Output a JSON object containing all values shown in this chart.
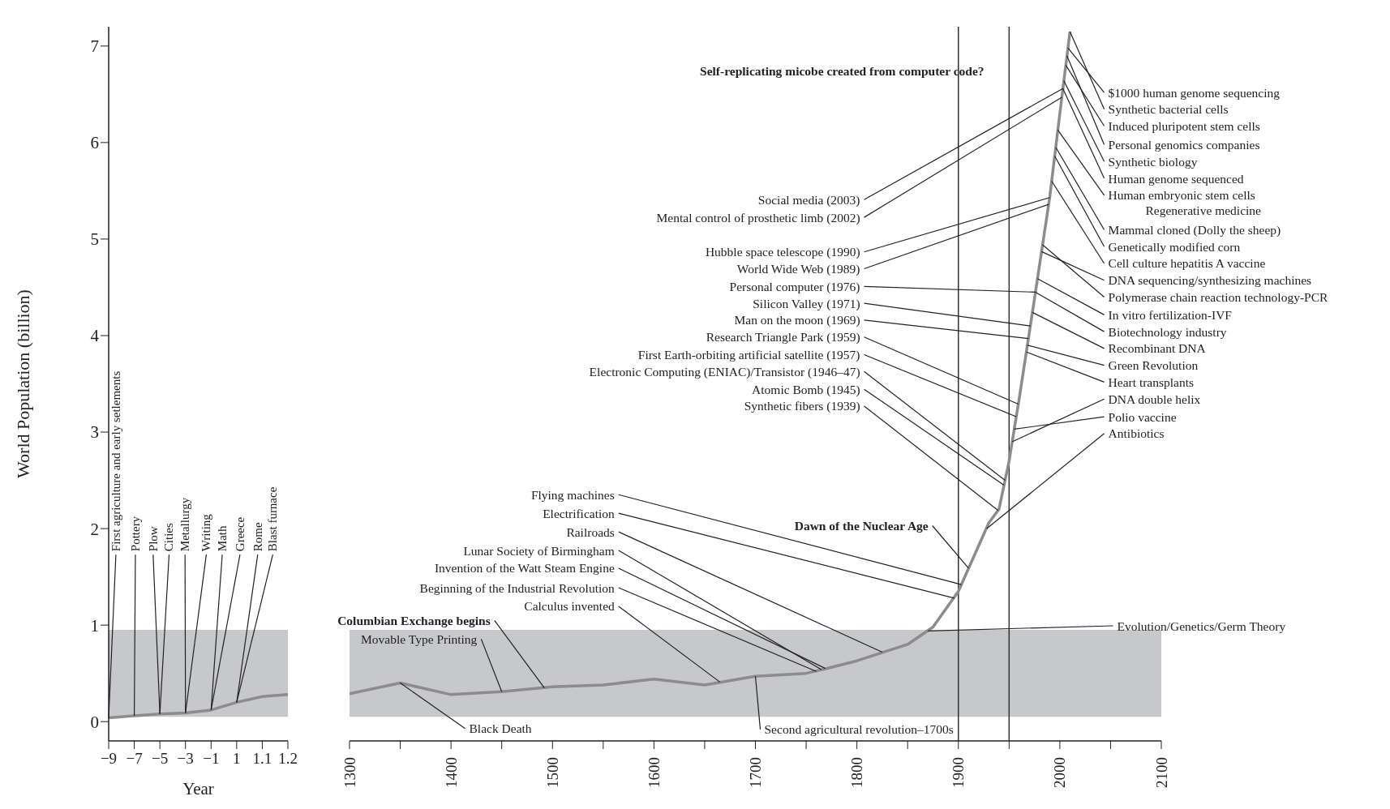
{
  "chart_data": [
    {
      "type": "line",
      "xlabel": "Year",
      "ylabel": "World Population (billion)",
      "categories": [
        "−9",
        "−7",
        "−5",
        "−3",
        "−1",
        "1",
        "1.1",
        "1.2"
      ],
      "series": [
        {
          "color": "#8c8c8c",
          "values": [
            0.04,
            0.06,
            0.08,
            0.09,
            0.12,
            0.2,
            0.26,
            0.28
          ]
        }
      ],
      "ylim": [
        -0.2,
        7.2
      ],
      "yticks": [
        0,
        1,
        2,
        3,
        4,
        5,
        6,
        7
      ],
      "grid": false,
      "legend": false,
      "marker": "none",
      "bands": [
        {
          "axis": "y",
          "from": 0.05,
          "to": 0.95,
          "color": "#c7c8cc"
        }
      ],
      "annotations": [
        {
          "text": "First agriculture and early setlements",
          "x": "−9",
          "y": 0.04
        },
        {
          "text": "Pottery",
          "x": "−7",
          "y": 0.06
        },
        {
          "text": "Plow",
          "x": "−5",
          "y": 0.08
        },
        {
          "text": "Cities",
          "x": "−5",
          "y": 0.08
        },
        {
          "text": "Metallurgy",
          "x": "−3",
          "y": 0.09
        },
        {
          "text": "Writing",
          "x": "−3",
          "y": 0.09
        },
        {
          "text": "Math",
          "x": "−1",
          "y": 0.12
        },
        {
          "text": "Greece",
          "x": "−1",
          "y": 0.12
        },
        {
          "text": "Rome",
          "x": "1",
          "y": 0.2
        },
        {
          "text": "Blast furnace",
          "x": "1",
          "y": 0.2
        }
      ]
    },
    {
      "type": "line",
      "x": [
        1300,
        1350,
        1400,
        1450,
        1500,
        1550,
        1600,
        1650,
        1700,
        1750,
        1770,
        1800,
        1850,
        1875,
        1900,
        1930,
        1940,
        1950,
        1960,
        1975,
        1990,
        2000,
        2010
      ],
      "series": [
        {
          "color": "#8c8c8c",
          "values": [
            0.29,
            0.4,
            0.28,
            0.31,
            0.36,
            0.38,
            0.44,
            0.38,
            0.47,
            0.5,
            0.55,
            0.63,
            0.8,
            0.98,
            1.35,
            2.06,
            2.2,
            2.7,
            3.35,
            4.38,
            5.43,
            6.3,
            7.15
          ]
        }
      ],
      "xlim": [
        1300,
        2100
      ],
      "xticks": [
        1300,
        {
          "value": 1350,
          "label": null
        },
        1400,
        {
          "value": 1450,
          "label": null
        },
        1500,
        {
          "value": 1550,
          "label": null
        },
        1600,
        {
          "value": 1650,
          "label": null
        },
        1700,
        {
          "value": 1750,
          "label": null
        },
        1800,
        {
          "value": 1850,
          "label": null
        },
        1900,
        {
          "value": 1950,
          "label": null
        },
        2000,
        {
          "value": 2050,
          "label": null
        },
        2100
      ],
      "ylim": [
        -0.2,
        7.2
      ],
      "tick_labels": "x",
      "grid": false,
      "legend": false,
      "marker": "none",
      "bands": [
        {
          "axis": "y",
          "from": 0.05,
          "to": 0.95,
          "color": "#c7c8cc"
        }
      ],
      "ref_lines": [
        {
          "axis": "x",
          "value": 1900,
          "color": "#333333"
        },
        {
          "axis": "x",
          "value": 1950,
          "color": "#333333"
        }
      ],
      "annotations": [
        "Self-replicating micobe created from computer code?",
        {
          "text": "Social media (2003)",
          "x": 2003,
          "y": 6.56
        },
        {
          "text": "Mental control of prosthetic limb (2002)",
          "x": 2002,
          "y": 6.47
        },
        {
          "text": "Hubble space telescope (1990)",
          "x": 1990,
          "y": 5.43
        },
        {
          "text": "World Wide Web (1989)",
          "x": 1989,
          "y": 5.36
        },
        {
          "text": "Personal computer (1976)",
          "x": 1976,
          "y": 4.45
        },
        {
          "text": "Silicon Valley (1971)",
          "x": 1971,
          "y": 4.1
        },
        {
          "text": "Man on the moon (1969)",
          "x": 1969,
          "y": 3.97
        },
        {
          "text": "Research Triangle Park (1959)",
          "x": 1959,
          "y": 3.29
        },
        {
          "text": "First Earth-orbiting artificial satellite (1957)",
          "x": 1957,
          "y": 3.16
        },
        {
          "text": "Electronic Computing (ENIAC)/Transistor (1946–47)",
          "x": 1946,
          "y": 2.5
        },
        {
          "text": "Atomic Bomb (1945)",
          "x": 1945,
          "y": 2.45
        },
        {
          "text": "Synthetic fibers (1939)",
          "x": 1939,
          "y": 2.19
        },
        {
          "text": "$1000 human genome sequencing",
          "x": 2008,
          "y": 6.98
        },
        {
          "text": "Synthetic bacterial cells",
          "x": 2010,
          "y": 7.15
        },
        {
          "text": "Induced pluripotent stem cells",
          "x": 2006,
          "y": 6.8
        },
        {
          "text": "Personal genomics companies",
          "x": 2007,
          "y": 6.9
        },
        {
          "text": "Synthetic biology",
          "x": 2004,
          "y": 6.64
        },
        {
          "text": "Human genome sequenced",
          "x": 2003,
          "y": 6.56
        },
        {
          "text": "Human embryonic stem cells",
          "x": 1998,
          "y": 6.13
        },
        "Regenerative medicine",
        {
          "text": "Mammal cloned (Dolly the sheep)",
          "x": 1996,
          "y": 5.95
        },
        {
          "text": "Genetically modified corn",
          "x": 1995,
          "y": 5.86
        },
        {
          "text": "Cell culture hepatitis A vaccine",
          "x": 1992,
          "y": 5.6
        },
        {
          "text": "DNA sequencing/synthesizing machines",
          "x": 1982,
          "y": 4.87
        },
        {
          "text": "Polymerase chain reaction technology-PCR",
          "x": 1983,
          "y": 4.94
        },
        {
          "text": "In vitro fertilization-IVF",
          "x": 1978,
          "y": 4.59
        },
        {
          "text": "Biotechnology industry",
          "x": 1976,
          "y": 4.45
        },
        {
          "text": "Recombinant DNA",
          "x": 1973,
          "y": 4.24
        },
        {
          "text": "Green Revolution",
          "x": 1968,
          "y": 3.9
        },
        {
          "text": "Heart transplants",
          "x": 1967,
          "y": 3.83
        },
        {
          "text": "DNA double helix",
          "x": 1953,
          "y": 2.9
        },
        {
          "text": "Polio vaccine",
          "x": 1955,
          "y": 3.03
        },
        {
          "text": "Antibiotics",
          "x": 1928,
          "y": 2.0
        },
        {
          "text": "Dawn of the Nuclear Age",
          "x": 1910,
          "y": 1.59
        },
        {
          "text": "Flying machines",
          "x": 1903,
          "y": 1.42
        },
        {
          "text": "Electrification",
          "x": 1896,
          "y": 1.28
        },
        {
          "text": "Railroads",
          "x": 1825,
          "y": 0.72
        },
        {
          "text": "Lunar Society of Birmingham",
          "x": 1765,
          "y": 0.54
        },
        {
          "text": "Invention of the Watt Steam Engine",
          "x": 1769,
          "y": 0.55
        },
        {
          "text": "Beginning of the Industrial Revolution",
          "x": 1760,
          "y": 0.52
        },
        {
          "text": "Calculus invented",
          "x": 1665,
          "y": 0.41
        },
        {
          "text": "Columbian Exchange begins",
          "x": 1492,
          "y": 0.35
        },
        {
          "text": "Movable Type Printing",
          "x": 1450,
          "y": 0.31
        },
        {
          "text": "Black Death",
          "x": 1350,
          "y": 0.4
        },
        {
          "text": "Second agricultural revolution–1700s",
          "x": 1700,
          "y": 0.47
        },
        {
          "text": "Evolution/Genetics/Germ Theory",
          "x": 1870,
          "y": 0.94
        }
      ]
    }
  ]
}
